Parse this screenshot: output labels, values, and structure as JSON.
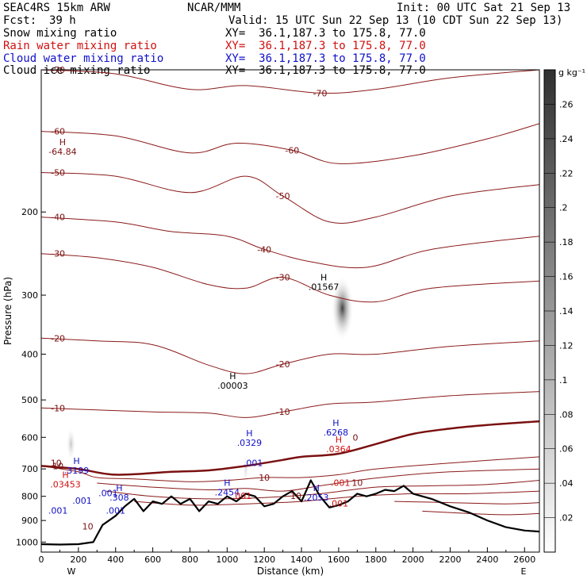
{
  "header": {
    "model": "SEAC4RS 15km ARW",
    "source": "NCAR/MMM",
    "init": "Init: 00 UTC Sat 21 Sep 13",
    "fcst_label": "Fcst:",
    "fcst_value": "39 h",
    "valid": "Valid: 15 UTC Sun 22 Sep 13 (10 CDT Sun 22 Sep 13)",
    "fields": [
      {
        "name": "Snow mixing ratio",
        "color": "#000000",
        "xy": "XY=  36.1,187.3 to 175.8, 77.0"
      },
      {
        "name": "Rain water mixing ratio",
        "color": "#d01010",
        "xy": "XY=  36.1,187.3 to 175.8, 77.0"
      },
      {
        "name": "Cloud water mixing ratio",
        "color": "#1010c8",
        "xy": "XY=  36.1,187.3 to 175.8, 77.0"
      },
      {
        "name": "Cloud ice mixing ratio",
        "color": "#000000",
        "xy": "XY=  36.1,187.3 to 175.8, 77.0"
      }
    ]
  },
  "chart_data": {
    "type": "cross-section",
    "xlabel": "Distance (km)",
    "ylabel": "Pressure (hPa)",
    "xlim": [
      0,
      2680
    ],
    "ylim_hpa": [
      1050,
      100
    ],
    "y_scale": "log",
    "x_ticks": [
      0,
      200,
      400,
      600,
      800,
      1000,
      1200,
      1400,
      1600,
      1800,
      2000,
      2200,
      2400,
      2600
    ],
    "y_ticks": [
      200,
      300,
      400,
      500,
      600,
      700,
      800,
      900,
      1000
    ],
    "x_end_labels": {
      "left": "W",
      "right": "E"
    },
    "colorbar": {
      "unit": "g kg⁻¹",
      "ticks": [
        ".02",
        ".04",
        ".06",
        ".08",
        ".1",
        ".12",
        ".14",
        ".16",
        ".18",
        ".2",
        ".22",
        ".24",
        ".26"
      ],
      "values": [
        0.02,
        0.04,
        0.06,
        0.08,
        0.1,
        0.12,
        0.14,
        0.16,
        0.18,
        0.2,
        0.22,
        0.24,
        0.26
      ],
      "max": 0.28
    },
    "isotherms": [
      {
        "label": "-70",
        "points": [
          [
            0,
            100
          ],
          [
            400,
            102
          ],
          [
            800,
            110
          ],
          [
            1100,
            108
          ],
          [
            1500,
            112
          ],
          [
            1800,
            110
          ],
          [
            2200,
            104
          ],
          [
            2680,
            100
          ]
        ]
      },
      {
        "label": "-60",
        "points": [
          [
            0,
            135
          ],
          [
            400,
            138
          ],
          [
            800,
            150
          ],
          [
            1050,
            143
          ],
          [
            1350,
            148
          ],
          [
            1600,
            158
          ],
          [
            2000,
            152
          ],
          [
            2400,
            140
          ],
          [
            2680,
            130
          ]
        ]
      },
      {
        "label": "-50",
        "points": [
          [
            0,
            165
          ],
          [
            400,
            168
          ],
          [
            800,
            182
          ],
          [
            1100,
            168
          ],
          [
            1300,
            185
          ],
          [
            1550,
            210
          ],
          [
            1800,
            205
          ],
          [
            2200,
            185
          ],
          [
            2680,
            175
          ]
        ]
      },
      {
        "label": "-40",
        "points": [
          [
            0,
            205
          ],
          [
            400,
            210
          ],
          [
            700,
            220
          ],
          [
            1000,
            225
          ],
          [
            1200,
            240
          ],
          [
            1450,
            255
          ],
          [
            1750,
            262
          ],
          [
            2100,
            240
          ],
          [
            2680,
            225
          ]
        ]
      },
      {
        "label": "-30",
        "points": [
          [
            0,
            245
          ],
          [
            300,
            250
          ],
          [
            600,
            262
          ],
          [
            900,
            285
          ],
          [
            1100,
            290
          ],
          [
            1300,
            275
          ],
          [
            1550,
            300
          ],
          [
            1800,
            310
          ],
          [
            2100,
            290
          ],
          [
            2680,
            280
          ]
        ]
      },
      {
        "label": "-20",
        "points": [
          [
            0,
            370
          ],
          [
            300,
            375
          ],
          [
            600,
            382
          ],
          [
            900,
            422
          ],
          [
            1100,
            440
          ],
          [
            1300,
            420
          ],
          [
            1550,
            400
          ],
          [
            1800,
            400
          ],
          [
            2200,
            385
          ],
          [
            2680,
            375
          ]
        ]
      },
      {
        "label": "-10",
        "points": [
          [
            0,
            520
          ],
          [
            300,
            525
          ],
          [
            600,
            530
          ],
          [
            900,
            533
          ],
          [
            1100,
            545
          ],
          [
            1300,
            530
          ],
          [
            1550,
            510
          ],
          [
            1800,
            505
          ],
          [
            2200,
            490
          ],
          [
            2680,
            480
          ]
        ]
      },
      {
        "label": "10",
        "points": [
          [
            0,
            690
          ],
          [
            200,
            710
          ],
          [
            300,
            730
          ],
          [
            500,
            735
          ],
          [
            800,
            745
          ],
          [
            1000,
            740
          ],
          [
            1200,
            730
          ],
          [
            1400,
            730
          ],
          [
            1600,
            720
          ],
          [
            1800,
            700
          ],
          [
            2200,
            680
          ],
          [
            2680,
            660
          ]
        ]
      },
      {
        "label": "",
        "points": [
          [
            300,
            750
          ],
          [
            600,
            765
          ],
          [
            900,
            775
          ],
          [
            1100,
            770
          ],
          [
            1300,
            780
          ],
          [
            1500,
            760
          ],
          [
            1700,
            740
          ],
          [
            1900,
            725
          ],
          [
            2200,
            710
          ],
          [
            2680,
            700
          ]
        ]
      },
      {
        "label": "",
        "points": [
          [
            350,
            780
          ],
          [
            600,
            800
          ],
          [
            900,
            810
          ],
          [
            1200,
            805
          ],
          [
            1500,
            790
          ],
          [
            1800,
            765
          ],
          [
            2100,
            760
          ],
          [
            2400,
            755
          ],
          [
            2680,
            740
          ]
        ]
      },
      {
        "label": "",
        "points": [
          [
            500,
            820
          ],
          [
            800,
            835
          ],
          [
            1100,
            830
          ],
          [
            1400,
            820
          ],
          [
            1700,
            800
          ],
          [
            2000,
            790
          ],
          [
            2300,
            790
          ],
          [
            2680,
            780
          ]
        ]
      },
      {
        "label": "",
        "points": [
          [
            1900,
            820
          ],
          [
            2200,
            825
          ],
          [
            2500,
            830
          ],
          [
            2680,
            825
          ]
        ]
      },
      {
        "label": "",
        "points": [
          [
            2050,
            860
          ],
          [
            2300,
            870
          ],
          [
            2500,
            875
          ],
          [
            2680,
            870
          ]
        ]
      }
    ],
    "freezing_level": {
      "label": "0",
      "points": [
        [
          0,
          690
        ],
        [
          200,
          700
        ],
        [
          400,
          720
        ],
        [
          700,
          710
        ],
        [
          900,
          705
        ],
        [
          1100,
          690
        ],
        [
          1200,
          680
        ],
        [
          1300,
          670
        ],
        [
          1400,
          660
        ],
        [
          1600,
          650
        ],
        [
          1800,
          620
        ],
        [
          2000,
          590
        ],
        [
          2200,
          575
        ],
        [
          2400,
          565
        ],
        [
          2680,
          555
        ]
      ]
    },
    "terrain_pressure": [
      [
        0,
        1010
      ],
      [
        100,
        1012
      ],
      [
        200,
        1010
      ],
      [
        280,
        1000
      ],
      [
        330,
        920
      ],
      [
        400,
        880
      ],
      [
        450,
        840
      ],
      [
        500,
        810
      ],
      [
        550,
        860
      ],
      [
        600,
        820
      ],
      [
        650,
        830
      ],
      [
        700,
        800
      ],
      [
        750,
        830
      ],
      [
        800,
        810
      ],
      [
        850,
        860
      ],
      [
        900,
        820
      ],
      [
        950,
        830
      ],
      [
        1000,
        800
      ],
      [
        1050,
        820
      ],
      [
        1100,
        790
      ],
      [
        1150,
        800
      ],
      [
        1200,
        840
      ],
      [
        1250,
        830
      ],
      [
        1300,
        800
      ],
      [
        1350,
        780
      ],
      [
        1400,
        820
      ],
      [
        1450,
        740
      ],
      [
        1500,
        800
      ],
      [
        1550,
        845
      ],
      [
        1600,
        835
      ],
      [
        1650,
        820
      ],
      [
        1700,
        790
      ],
      [
        1750,
        800
      ],
      [
        1800,
        790
      ],
      [
        1850,
        775
      ],
      [
        1900,
        780
      ],
      [
        1950,
        760
      ],
      [
        2000,
        790
      ],
      [
        2100,
        810
      ],
      [
        2200,
        840
      ],
      [
        2300,
        865
      ],
      [
        2400,
        900
      ],
      [
        2500,
        930
      ],
      [
        2600,
        945
      ],
      [
        2680,
        950
      ]
    ],
    "shaded_cells": [
      {
        "field": "cloud ice",
        "x": 1620,
        "p": 320,
        "sx": 60,
        "sp": 55,
        "peak": 0.26
      },
      {
        "field": "snow",
        "x": 160,
        "p": 620,
        "sx": 25,
        "sp": 55,
        "peak": 0.08
      },
      {
        "field": "snow",
        "x": 1100,
        "p": 700,
        "sx": 18,
        "sp": 60,
        "peak": 0.05
      }
    ],
    "extrema": [
      {
        "type": "H",
        "value": "-64.84",
        "x": 115,
        "p": 150,
        "color": "#7a1010"
      },
      {
        "type": "H",
        "value": ".01567",
        "x": 1520,
        "p": 290,
        "color": "#000000"
      },
      {
        "type": "H",
        "value": ".00003",
        "x": 1030,
        "p": 470,
        "color": "#000000"
      },
      {
        "type": "H",
        "value": ".0329",
        "x": 1120,
        "p": 620,
        "color": "#1010c8"
      },
      {
        "type": "H",
        "value": ".6268",
        "x": 1585,
        "p": 590,
        "color": "#1010c8"
      },
      {
        "type": "H",
        "value": ".0364",
        "x": 1600,
        "p": 640,
        "color": "#d01010"
      },
      {
        "type": "H",
        "value": ".3199",
        "x": 190,
        "p": 710,
        "color": "#1010c8"
      },
      {
        "type": "H",
        "value": ".03453",
        "x": 130,
        "p": 760,
        "color": "#d01010"
      },
      {
        "type": "H",
        "value": ".308",
        "x": 420,
        "p": 810,
        "color": "#1010c8"
      },
      {
        "type": "H",
        "value": ".2454",
        "x": 1000,
        "p": 790,
        "color": "#1010c8"
      },
      {
        "type": "H",
        "value": ".2053",
        "x": 1480,
        "p": 810,
        "color": "#1010c8"
      }
    ],
    "small_labels": [
      {
        "text": ".001",
        "x": 90,
        "p": 870,
        "color": "#1010c8"
      },
      {
        "text": ".001",
        "x": 220,
        "p": 830,
        "color": "#1010c8"
      },
      {
        "text": ".001",
        "x": 360,
        "p": 800,
        "color": "#1010c8"
      },
      {
        "text": ".001",
        "x": 400,
        "p": 870,
        "color": "#1010c8"
      },
      {
        "text": ".001",
        "x": 1140,
        "p": 690,
        "color": "#1010c8"
      },
      {
        "text": ".001",
        "x": 1080,
        "p": 810,
        "color": "#d01010"
      },
      {
        "text": ".001",
        "x": 1610,
        "p": 760,
        "color": "#d01010"
      },
      {
        "text": ".001",
        "x": 1600,
        "p": 840,
        "color": "#d01010"
      },
      {
        "text": "0",
        "x": 1690,
        "p": 610,
        "color": "#7a1010"
      },
      {
        "text": "10",
        "x": 250,
        "p": 940,
        "color": "#7a1010"
      },
      {
        "text": "10",
        "x": 1370,
        "p": 810,
        "color": "#7a1010"
      },
      {
        "text": "10",
        "x": 1700,
        "p": 760,
        "color": "#7a1010"
      },
      {
        "text": "10",
        "x": 80,
        "p": 690,
        "color": "#7a1010"
      }
    ]
  }
}
